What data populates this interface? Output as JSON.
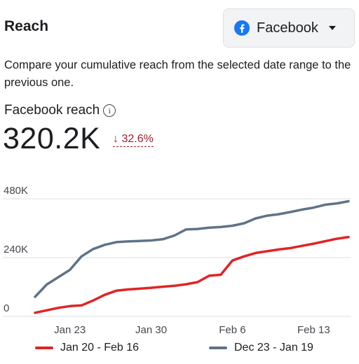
{
  "header": {
    "title": "Reach",
    "platform_dropdown": {
      "selected": "Facebook",
      "icon": "facebook-icon",
      "brand_color": "#1877f2"
    }
  },
  "description": "Compare your cumulative reach from the selected date range to the previous one.",
  "metric": {
    "label": "Facebook reach",
    "info_icon": "info-icon",
    "value": "320.2K",
    "change": "↓ 32.6%",
    "change_color": "#9e1f2c"
  },
  "chart_data": {
    "type": "line",
    "x_tick_labels": [
      "Jan 23",
      "Jan 30",
      "Feb 6",
      "Feb 13"
    ],
    "x_tick_days": [
      3,
      10,
      17,
      24
    ],
    "y_tick_labels": [
      "480K",
      "240K",
      "0"
    ],
    "y_tick_values": [
      480000,
      240000,
      0
    ],
    "ylim": [
      0,
      480000
    ],
    "grid": true,
    "legend_position": "bottom",
    "series": [
      {
        "name": "Jan 20 - Feb 16",
        "color": "#e02424",
        "x": [
          0,
          1,
          2,
          3,
          4,
          5,
          6,
          7,
          8,
          9,
          10,
          11,
          12,
          13,
          14,
          15,
          16,
          17,
          18,
          19,
          20,
          21,
          22,
          23,
          24,
          25,
          26,
          27
        ],
        "values": [
          15000,
          25000,
          35000,
          42000,
          45000,
          65000,
          88000,
          105000,
          110000,
          113000,
          117000,
          121000,
          125000,
          131000,
          140000,
          166000,
          170000,
          228000,
          245000,
          259000,
          266000,
          273000,
          279000,
          288000,
          297000,
          307000,
          317000,
          324000
        ]
      },
      {
        "name": "Dec 23 - Jan 19",
        "color": "#5f7387",
        "x": [
          0,
          1,
          2,
          3,
          4,
          5,
          6,
          7,
          8,
          9,
          10,
          11,
          12,
          13,
          14,
          15,
          16,
          17,
          18,
          19,
          20,
          21,
          22,
          23,
          24,
          25,
          26,
          27
        ],
        "values": [
          80000,
          130000,
          160000,
          190000,
          245000,
          275000,
          292000,
          303000,
          306000,
          308000,
          310000,
          315000,
          330000,
          355000,
          357000,
          362000,
          365000,
          370000,
          380000,
          400000,
          411000,
          417000,
          426000,
          436000,
          444000,
          456000,
          461000,
          470000
        ]
      }
    ]
  }
}
